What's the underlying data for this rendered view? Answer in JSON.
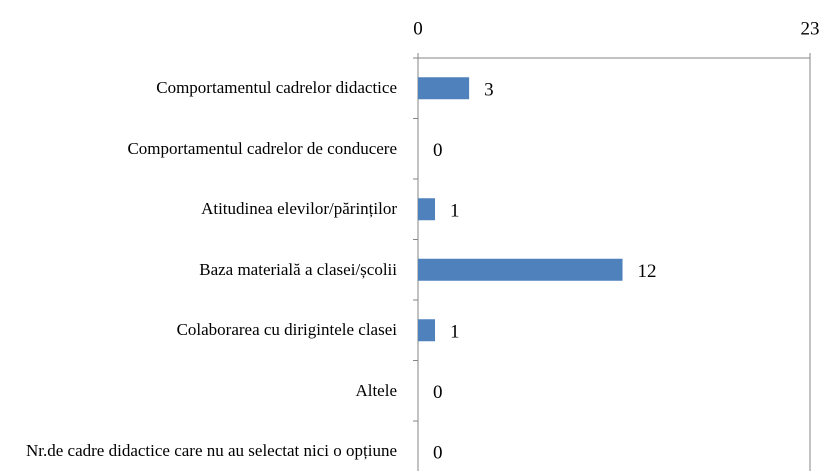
{
  "chart_data": {
    "type": "bar",
    "orientation": "horizontal",
    "categories": [
      "Comportamentul cadrelor didactice",
      "Comportamentul cadrelor de conducere",
      "Atitudinea elevilor/părinților",
      "Baza materială a clasei/școlii",
      "Colaborarea cu dirigintele clasei",
      "Altele",
      "Nr.de cadre didactice care nu au selectat nici o opțiune"
    ],
    "values": [
      3,
      0,
      1,
      12,
      1,
      0,
      0
    ],
    "color": "#4f81bd",
    "xlim": [
      0,
      23
    ],
    "xticks": [
      0,
      23
    ],
    "grid": false
  }
}
